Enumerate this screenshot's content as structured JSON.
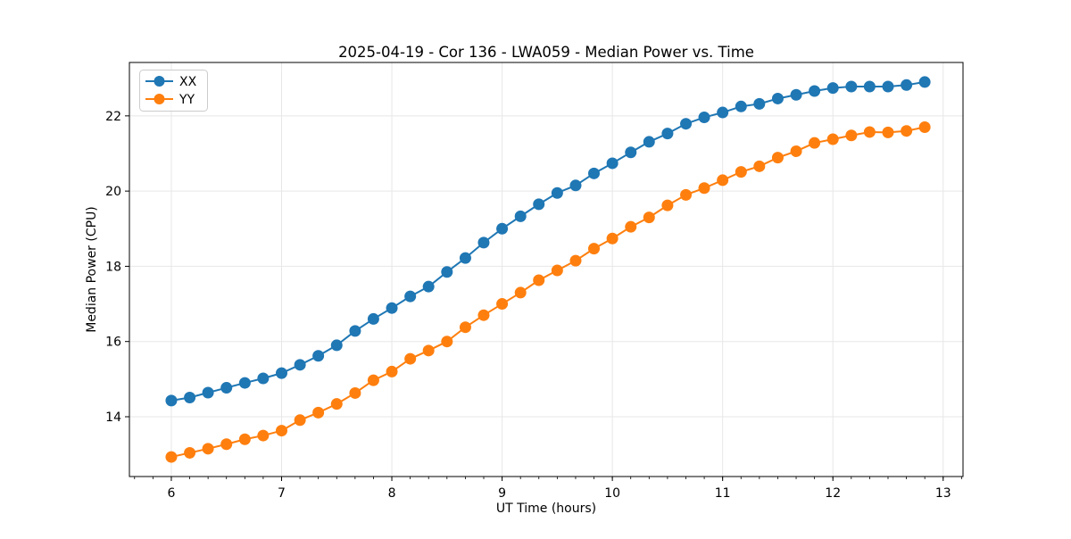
{
  "chart_data": {
    "type": "line",
    "title": "2025-04-19 - Cor 136 - LWA059 - Median Power vs. Time",
    "xlabel": "UT Time (hours)",
    "ylabel": "Median Power (CPU)",
    "xlim": [
      5.62,
      13.18
    ],
    "ylim": [
      12.41,
      23.42
    ],
    "xticks": [
      6,
      7,
      8,
      9,
      10,
      11,
      12,
      13
    ],
    "yticks": [
      14,
      16,
      18,
      20,
      22
    ],
    "x_minor_step": 0.166667,
    "grid": true,
    "grid_color": "#e7e7e7",
    "background_color": "#ffffff",
    "legend_position": "upper left",
    "x": [
      6.0,
      6.167,
      6.333,
      6.5,
      6.667,
      6.833,
      7.0,
      7.167,
      7.333,
      7.5,
      7.667,
      7.833,
      8.0,
      8.167,
      8.333,
      8.5,
      8.667,
      8.833,
      9.0,
      9.167,
      9.333,
      9.5,
      9.667,
      9.833,
      10.0,
      10.167,
      10.333,
      10.5,
      10.667,
      10.833,
      11.0,
      11.167,
      11.333,
      11.5,
      11.667,
      11.833,
      12.0,
      12.167,
      12.333,
      12.5,
      12.667,
      12.833
    ],
    "series": [
      {
        "name": "XX",
        "color": "#1f77b4",
        "values": [
          14.43,
          14.51,
          14.64,
          14.77,
          14.9,
          15.02,
          15.16,
          15.38,
          15.62,
          15.9,
          16.28,
          16.6,
          16.89,
          17.2,
          17.46,
          17.85,
          18.22,
          18.63,
          19.0,
          19.33,
          19.65,
          19.95,
          20.15,
          20.47,
          20.74,
          21.03,
          21.31,
          21.53,
          21.79,
          21.96,
          22.09,
          22.25,
          22.32,
          22.46,
          22.56,
          22.66,
          22.74,
          22.78,
          22.78,
          22.78,
          22.82,
          22.9
        ]
      },
      {
        "name": "YY",
        "color": "#ff7f0e",
        "values": [
          12.93,
          13.04,
          13.15,
          13.27,
          13.4,
          13.5,
          13.63,
          13.91,
          14.11,
          14.34,
          14.63,
          14.97,
          15.2,
          15.54,
          15.76,
          16.0,
          16.38,
          16.7,
          17.0,
          17.3,
          17.63,
          17.89,
          18.15,
          18.47,
          18.74,
          19.05,
          19.3,
          19.62,
          19.9,
          20.08,
          20.29,
          20.51,
          20.66,
          20.89,
          21.06,
          21.28,
          21.38,
          21.48,
          21.57,
          21.56,
          21.6,
          21.7
        ]
      }
    ]
  }
}
